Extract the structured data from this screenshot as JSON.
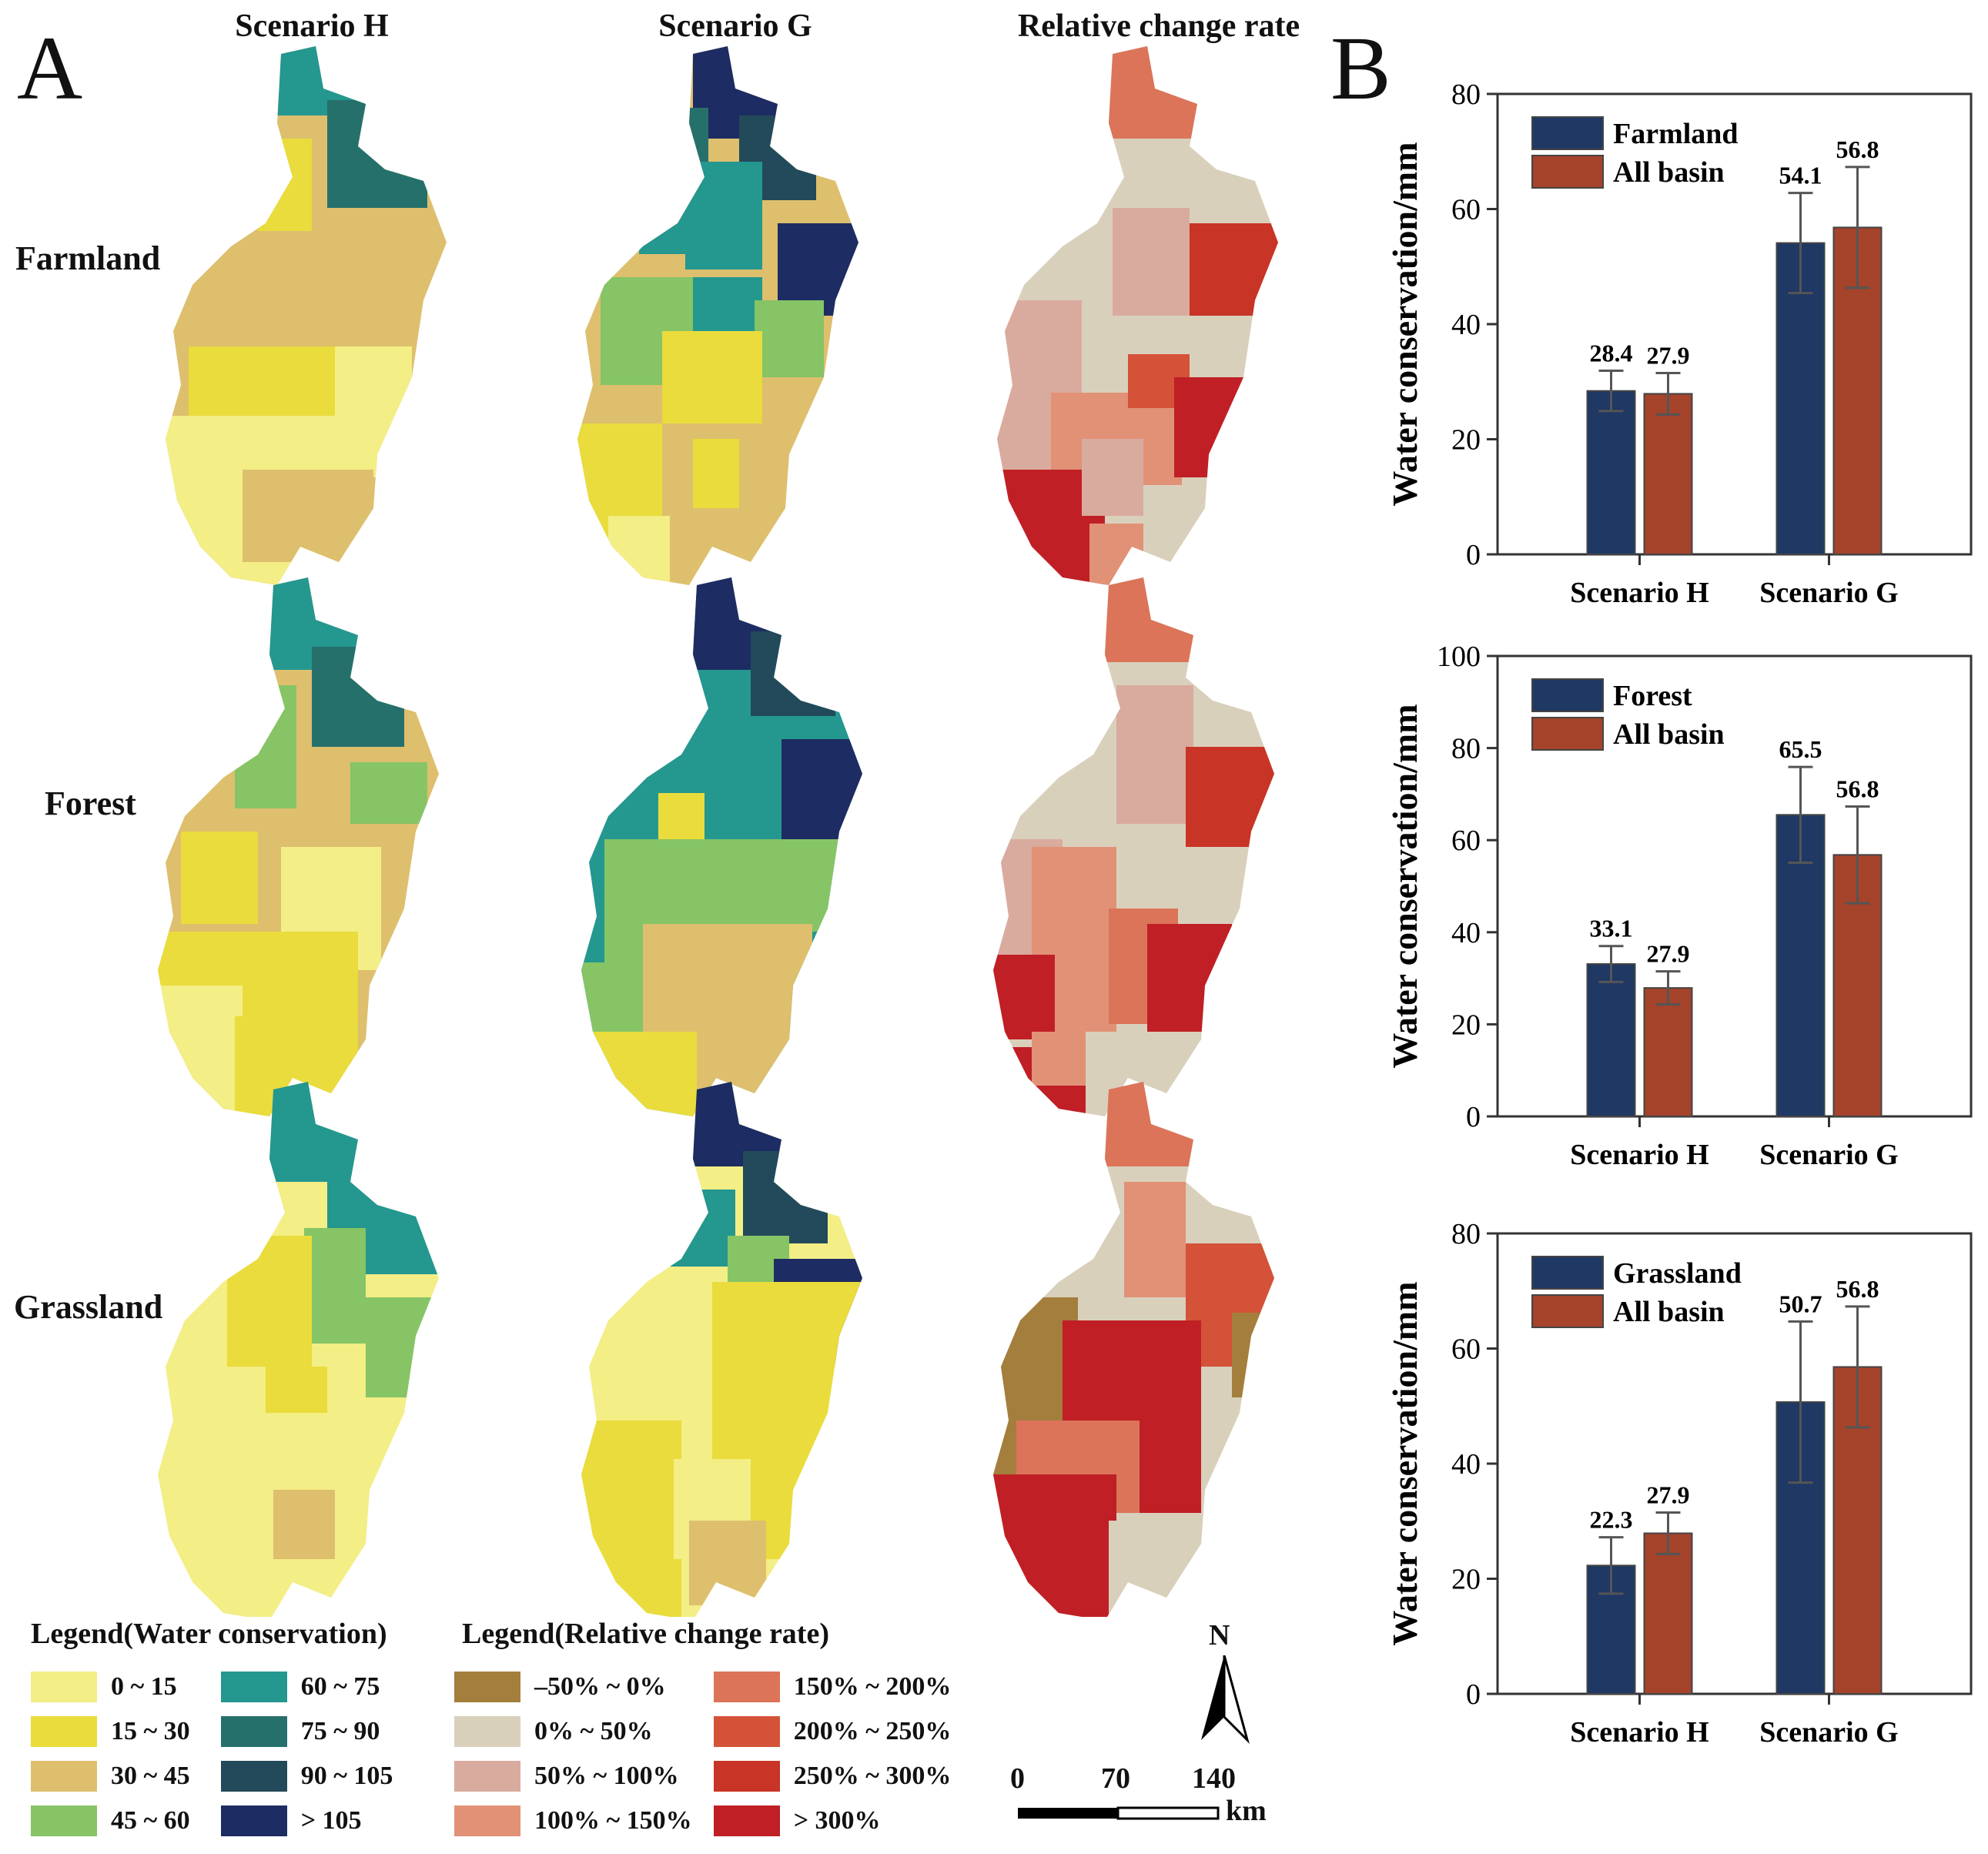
{
  "panelA": {
    "letter": "A",
    "columns": [
      "Scenario H",
      "Scenario G",
      "Relative change rate"
    ],
    "rows": [
      "Farmland",
      "Forest",
      "Grassland"
    ]
  },
  "panelB": {
    "letter": "B"
  },
  "legends": {
    "water": {
      "title": "Legend(Water conservation)",
      "items": [
        {
          "label": "0 ~ 15",
          "color": "#f3ee86"
        },
        {
          "label": "15 ~ 30",
          "color": "#e9dc3c"
        },
        {
          "label": "30 ~ 45",
          "color": "#ddbf6e"
        },
        {
          "label": "45 ~ 60",
          "color": "#86c466"
        },
        {
          "label": "60 ~ 75",
          "color": "#24978f"
        },
        {
          "label": "75 ~ 90",
          "color": "#26706c"
        },
        {
          "label": "90 ~ 105",
          "color": "#224a5a"
        },
        {
          "label": "> 105",
          "color": "#1d2c62"
        }
      ]
    },
    "change": {
      "title": "Legend(Relative change rate)",
      "items": [
        {
          "label": "–50% ~ 0%",
          "color": "#a47e3c"
        },
        {
          "label": "0% ~ 50%",
          "color": "#d9d0bc"
        },
        {
          "label": "50% ~ 100%",
          "color": "#d9ab9e"
        },
        {
          "label": "100% ~ 150%",
          "color": "#e19176"
        },
        {
          "label": "150% ~ 200%",
          "color": "#db7459"
        },
        {
          "label": "200% ~ 250%",
          "color": "#d45238"
        },
        {
          "label": "250% ~ 300%",
          "color": "#c83426"
        },
        {
          "label": "> 300%",
          "color": "#c01f25"
        }
      ]
    }
  },
  "scalebar": {
    "north": "N",
    "ticks": [
      "0",
      "70",
      "140"
    ],
    "unit": "km"
  },
  "colors": {
    "navy": "#1f3864",
    "rust": "#a5432b",
    "error": "#555555"
  },
  "chart_data": [
    {
      "type": "bar",
      "categories": [
        "Scenario H",
        "Scenario G"
      ],
      "series": [
        {
          "name": "Farmland",
          "values": [
            28.4,
            54.1
          ],
          "errors": [
            3.5,
            8.7
          ]
        },
        {
          "name": "All basin",
          "values": [
            27.9,
            56.8
          ],
          "errors": [
            3.6,
            10.5
          ]
        }
      ],
      "value_labels": [
        [
          "28.4",
          "54.1"
        ],
        [
          "27.9",
          "56.8"
        ]
      ],
      "ylabel": "Water conservation/mm",
      "ylim": [
        0,
        80
      ],
      "yticks": [
        "0",
        "20",
        "40",
        "60",
        "80"
      ]
    },
    {
      "type": "bar",
      "categories": [
        "Scenario H",
        "Scenario G"
      ],
      "series": [
        {
          "name": "Forest",
          "values": [
            33.1,
            65.5
          ],
          "errors": [
            3.9,
            10.4
          ]
        },
        {
          "name": "All basin",
          "values": [
            27.9,
            56.8
          ],
          "errors": [
            3.6,
            10.5
          ]
        }
      ],
      "value_labels": [
        [
          "33.1",
          "65.5"
        ],
        [
          "27.9",
          "56.8"
        ]
      ],
      "ylabel": "Water conservation/mm",
      "ylim": [
        0,
        100
      ],
      "yticks": [
        "0",
        "20",
        "40",
        "60",
        "80",
        "100"
      ]
    },
    {
      "type": "bar",
      "categories": [
        "Scenario H",
        "Scenario G"
      ],
      "series": [
        {
          "name": "Grassland",
          "values": [
            22.3,
            50.7
          ],
          "errors": [
            4.9,
            14.0
          ]
        },
        {
          "name": "All basin",
          "values": [
            27.9,
            56.8
          ],
          "errors": [
            3.6,
            10.5
          ]
        }
      ],
      "value_labels": [
        [
          "22.3",
          "50.7"
        ],
        [
          "27.9",
          "56.8"
        ]
      ],
      "ylabel": "Water conservation/mm",
      "ylim": [
        0,
        80
      ],
      "yticks": [
        "0",
        "20",
        "40",
        "60",
        "80"
      ]
    }
  ]
}
